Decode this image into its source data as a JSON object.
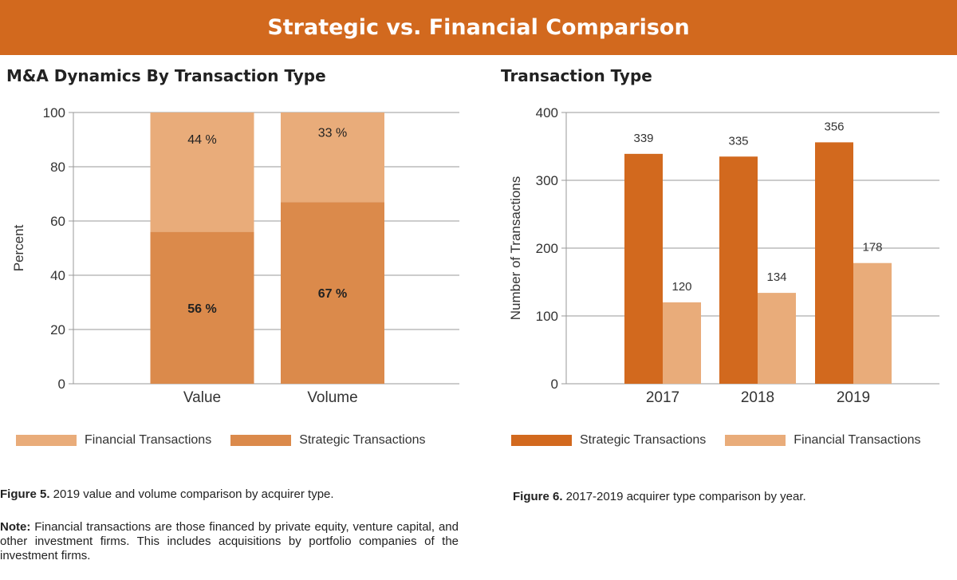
{
  "banner": {
    "title": "Strategic vs. Financial Comparison"
  },
  "colors": {
    "banner": "#D2691E",
    "strategic_dark": "#D2691E",
    "strategic_mid": "#DB8A4B",
    "financial_light": "#E9AC7A",
    "grid": "#9a9a9a"
  },
  "chart_data": [
    {
      "type": "bar",
      "stacked": true,
      "title": "M&A Dynamics By Transaction Type",
      "xlabel": "",
      "ylabel": "Percent",
      "ylim": [
        0,
        100
      ],
      "yticks": [
        "0",
        "20",
        "40",
        "60",
        "80",
        "100"
      ],
      "categories": [
        "Value",
        "Volume"
      ],
      "series": [
        {
          "name": "Strategic Transactions",
          "values": [
            56,
            67
          ],
          "labels": [
            "56 %",
            "67 %"
          ]
        },
        {
          "name": "Financial Transactions",
          "values": [
            44,
            33
          ],
          "labels": [
            "44 %",
            "33 %"
          ]
        }
      ],
      "legend": [
        "Financial Transactions",
        "Strategic Transactions"
      ],
      "grid": true
    },
    {
      "type": "bar",
      "stacked": false,
      "title": "Transaction Type",
      "xlabel": "",
      "ylabel": "Number of Transactions",
      "ylim": [
        0,
        400
      ],
      "yticks": [
        "0",
        "100",
        "200",
        "300",
        "400"
      ],
      "categories": [
        "2017",
        "2018",
        "2019"
      ],
      "series": [
        {
          "name": "Strategic Transactions",
          "values": [
            339,
            335,
            356
          ],
          "labels": [
            "339",
            "335",
            "356"
          ]
        },
        {
          "name": "Financial Transactions",
          "values": [
            120,
            134,
            178
          ],
          "labels": [
            "120",
            "134",
            "178"
          ]
        }
      ],
      "legend": [
        "Strategic Transactions",
        "Financial Transactions"
      ],
      "grid": true
    }
  ],
  "captions": {
    "fig5_label": "Figure 5.",
    "fig5_text": " 2019 value and volume comparison by acquirer type.",
    "fig6_label": "Figure 6.",
    "fig6_text": " 2017-2019 acquirer type comparison by year.",
    "note_label": "Note:",
    "note_text": " Financial transactions are those financed by private equity, venture capital, and other investment firms. This includes acquisitions by portfolio companies of the investment firms."
  }
}
